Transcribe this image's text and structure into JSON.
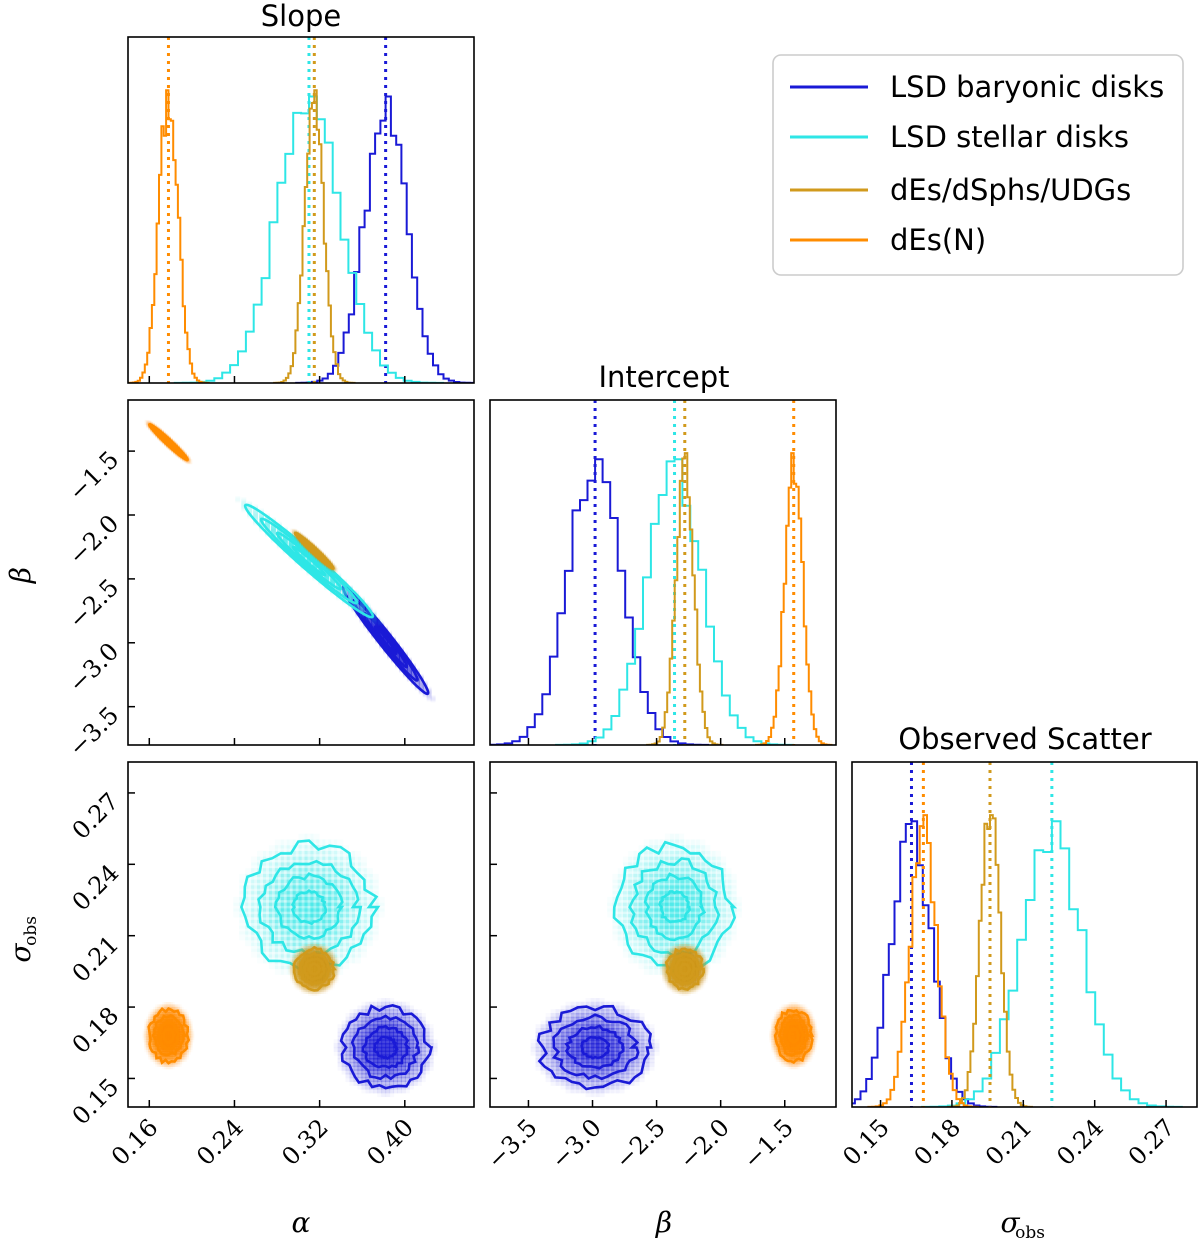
{
  "colors": {
    "baryonic": "#1a1ad6",
    "stellar": "#2ee6e6",
    "dEs": "#d19a1c",
    "dEsN": "#ff8c00"
  },
  "legend": {
    "location": "top-right",
    "entries": [
      {
        "key": "baryonic",
        "label": "LSD baryonic disks"
      },
      {
        "key": "stellar",
        "label": "LSD stellar disks"
      },
      {
        "key": "dEs",
        "label": "dEs/dSphs/UDGs"
      },
      {
        "key": "dEsN",
        "label": "dEs(N)"
      }
    ]
  },
  "titles": {
    "slope": "Slope",
    "intercept": "Intercept",
    "scatter": "Observed Scatter"
  },
  "axis_labels": {
    "alpha": "α",
    "beta": "β",
    "sigma": "σ",
    "sigma_sub": "obs"
  },
  "ticks": {
    "alpha": [
      "0.16",
      "0.24",
      "0.32",
      "0.40"
    ],
    "beta": [
      "−3.5",
      "−3.0",
      "−2.5",
      "−2.0",
      "−1.5"
    ],
    "sigma": [
      "0.15",
      "0.18",
      "0.21",
      "0.24",
      "0.27"
    ]
  },
  "chart_data": {
    "type": "corner",
    "parameters": [
      "alpha",
      "beta",
      "sigma_obs"
    ],
    "ranges": {
      "alpha": [
        0.14,
        0.465
      ],
      "beta": [
        -3.8,
        -1.1
      ],
      "sigma": [
        0.138,
        0.283
      ]
    },
    "tick_values": {
      "alpha": [
        0.16,
        0.24,
        0.32,
        0.4
      ],
      "beta": [
        -3.5,
        -3.0,
        -2.5,
        -2.0,
        -1.5
      ],
      "sigma": [
        0.15,
        0.18,
        0.21,
        0.24,
        0.27
      ]
    },
    "series": [
      {
        "name": "LSD baryonic disks",
        "key": "baryonic",
        "alpha": 0.382,
        "alpha_sd": 0.02,
        "beta": -2.98,
        "beta_sd": 0.21,
        "sigma": 0.163,
        "sigma_sd": 0.0085,
        "rho_ab": -0.98
      },
      {
        "name": "LSD stellar disks",
        "key": "stellar",
        "alpha": 0.31,
        "alpha_sd": 0.03,
        "beta": -2.36,
        "beta_sd": 0.22,
        "sigma": 0.222,
        "sigma_sd": 0.013,
        "rho_ab": -0.98
      },
      {
        "name": "dEs/dSphs/UDGs",
        "key": "dEs",
        "alpha": 0.315,
        "alpha_sd": 0.009,
        "beta": -2.28,
        "beta_sd": 0.07,
        "sigma": 0.196,
        "sigma_sd": 0.0042,
        "rho_ab": -0.98
      },
      {
        "name": "dEs(N)",
        "key": "dEsN",
        "alpha": 0.178,
        "alpha_sd": 0.009,
        "beta": -1.43,
        "beta_sd": 0.07,
        "sigma": 0.168,
        "sigma_sd": 0.0055,
        "rho_ab": -0.98
      }
    ]
  }
}
